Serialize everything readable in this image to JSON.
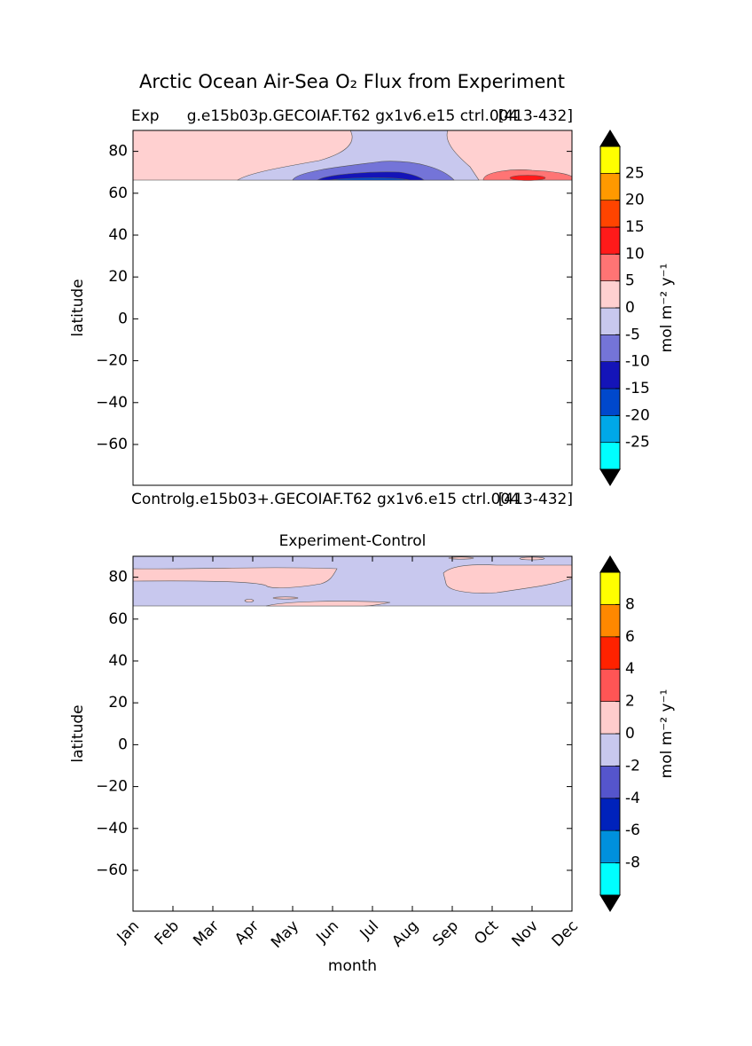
{
  "title": "Arctic Ocean Air-Sea O₂ Flux from Experiment",
  "chart_data": [
    {
      "type": "contour",
      "title_left": "Exp",
      "title_center": "g.e15b03p.GECOIAF.T62 gx1v6.e15 ctrl.004",
      "title_right": "[413-432]",
      "caption_left": "Control",
      "caption_center": "g.e15b03+.GECOIAF.T62 gx1v6.e15 ctrl.004",
      "caption_right": "[413-432]",
      "ylabel": "latitude",
      "ylim": [
        -79.5,
        90
      ],
      "yticks": [
        {
          "value": -60,
          "label": "−60"
        },
        {
          "value": -40,
          "label": "−40"
        },
        {
          "value": -20,
          "label": "−20"
        },
        0,
        20,
        40,
        60,
        80
      ],
      "levels": [
        -30,
        -25,
        -20,
        -15,
        -10,
        -5,
        0,
        5,
        10,
        15,
        20,
        25,
        30
      ],
      "colors": [
        "#00ffff",
        "#00a8e8",
        "#0048cc",
        "#1414b8",
        "#7474d8",
        "#c8c8ee",
        "#ffd0d0",
        "#ff7474",
        "#ff1a1a",
        "#ff4400",
        "#ff9900",
        "#ffff00"
      ],
      "colorbar_ticks": [
        -25,
        -20,
        -15,
        -10,
        -5,
        0,
        5,
        10,
        15,
        20,
        25
      ],
      "colorbar_label": "mol m⁻² y⁻¹",
      "extend_color": "#000000"
    },
    {
      "type": "contour",
      "title": "Experiment-Control",
      "xlabel": "month",
      "categories": [
        "Jan",
        "Feb",
        "Mar",
        "Apr",
        "May",
        "Jun",
        "Jul",
        "Aug",
        "Sep",
        "Oct",
        "Nov",
        "Dec"
      ],
      "ylabel": "latitude",
      "ylim": [
        -79.5,
        90
      ],
      "yticks": [
        {
          "value": -60,
          "label": "−60"
        },
        {
          "value": -40,
          "label": "−40"
        },
        {
          "value": -20,
          "label": "−20"
        },
        0,
        20,
        40,
        60,
        80
      ],
      "levels": [
        -10,
        -8,
        -6,
        -4,
        -2,
        0,
        2,
        4,
        6,
        8,
        10
      ],
      "colors": [
        "#00ffff",
        "#0090dd",
        "#0022bb",
        "#5555cc",
        "#c8c8ee",
        "#ffcccc",
        "#ff5555",
        "#ff2200",
        "#ff8800",
        "#ffff00"
      ],
      "colorbar_ticks": [
        -8,
        -6,
        -4,
        -2,
        0,
        2,
        4,
        6,
        8
      ],
      "colorbar_label": "mol m⁻² y⁻¹",
      "extend_color": "#000000"
    }
  ]
}
